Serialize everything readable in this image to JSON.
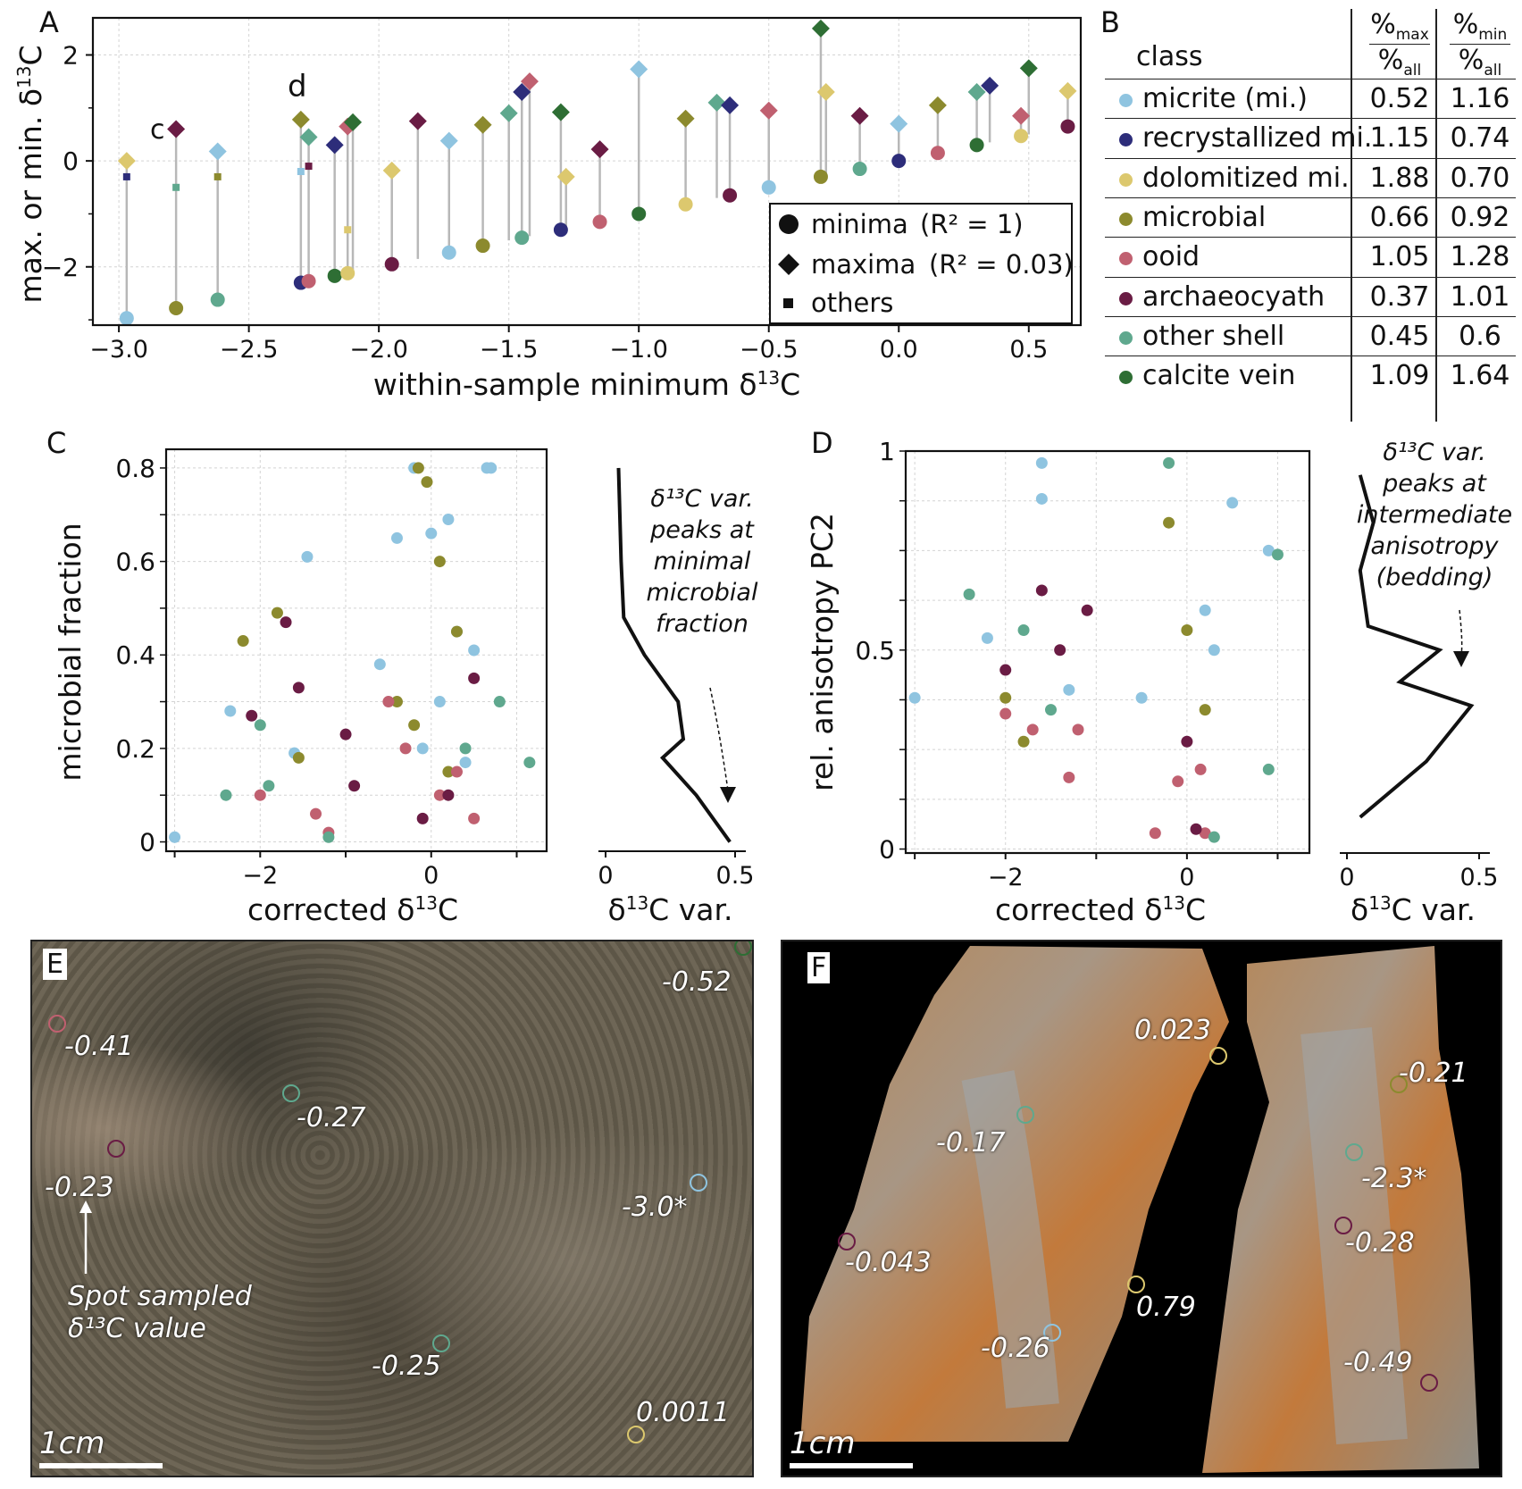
{
  "colors": {
    "micrite": "#8fc4e0",
    "recrystallized": "#2d2d7a",
    "dolomitized": "#dcc86e",
    "microbial": "#8c8a2e",
    "ooid": "#c06070",
    "archaeocyath": "#6a1c44",
    "other_shell": "#5fa88e",
    "calcite_vein": "#2e6e34"
  },
  "panelA": {
    "letter": "A",
    "ylabel_main": "max. or min. δ",
    "ylabel_sup": "13",
    "ylabel_end": "C",
    "xlabel_main": "within-sample minimum δ",
    "xlabel_sup": "13",
    "xlabel_end": "C",
    "xticks": [
      "−3.0",
      "−2.5",
      "−2.0",
      "−1.5",
      "−1.0",
      "−0.5",
      "0.0",
      "0.5"
    ],
    "yticks": [
      "2",
      "0",
      "−2"
    ],
    "annot_c": "c",
    "annot_d": "d",
    "legend": {
      "minima": "minima",
      "minima_r2": "(R² = 1)",
      "maxima": "maxima",
      "maxima_r2": "(R² = 0.03)",
      "others": "others"
    }
  },
  "panelB": {
    "letter": "B",
    "header_class": "class",
    "header_max_top": "%",
    "header_max_sub": "max",
    "header_max_bottom": "%",
    "header_max_bottom_sub": "all",
    "header_min_top": "%",
    "header_min_sub": "min",
    "header_min_bottom": "%",
    "header_min_bottom_sub": "all",
    "rows": [
      {
        "class": "micrite (mi.)",
        "max": "0.52",
        "min": "1.16",
        "color": "#8fc4e0"
      },
      {
        "class": "recrystallized mi.",
        "max": "1.15",
        "min": "0.74",
        "color": "#2d2d7a"
      },
      {
        "class": "dolomitized mi.",
        "max": "1.88",
        "min": "0.70",
        "color": "#dcc86e"
      },
      {
        "class": "microbial",
        "max": "0.66",
        "min": "0.92",
        "color": "#8c8a2e"
      },
      {
        "class": "ooid",
        "max": "1.05",
        "min": "1.28",
        "color": "#c06070"
      },
      {
        "class": "archaeocyath",
        "max": "0.37",
        "min": "1.01",
        "color": "#6a1c44"
      },
      {
        "class": "other shell",
        "max": "0.45",
        "min": "0.6",
        "color": "#5fa88e"
      },
      {
        "class": "calcite vein",
        "max": "1.09",
        "min": "1.64",
        "color": "#2e6e34"
      }
    ]
  },
  "panelC": {
    "letter": "C",
    "ylabel": "microbial fraction",
    "xlabel_main": "corrected δ",
    "xlabel_sup": "13",
    "xlabel_end": "C",
    "xticks": [
      "−2",
      "0"
    ],
    "yticks": [
      "0",
      "0.2",
      "0.4",
      "0.6",
      "0.8"
    ],
    "var_xticks": [
      "0",
      "0.5"
    ],
    "var_xlabel_main": "δ",
    "var_xlabel_sup": "13",
    "var_xlabel_end": "C var.",
    "note": [
      "δ¹³C var.",
      "peaks at",
      "minimal",
      "microbial",
      "fraction"
    ]
  },
  "panelD": {
    "letter": "D",
    "ylabel": "rel. anisotropy PC2",
    "xlabel_main": "corrected δ",
    "xlabel_sup": "13",
    "xlabel_end": "C",
    "xticks": [
      "−2",
      "0"
    ],
    "yticks": [
      "0",
      "0.5",
      "1"
    ],
    "var_xticks": [
      "0",
      "0.5"
    ],
    "var_xlabel_main": "δ",
    "var_xlabel_sup": "13",
    "var_xlabel_end": "C var.",
    "note": [
      "δ¹³C var.",
      "peaks at",
      "intermediate",
      "anisotropy",
      "(bedding)"
    ]
  },
  "panelE": {
    "letter": "E",
    "scale": "1cm",
    "values": [
      "-0.52",
      "-0.41",
      "-0.27",
      "-0.23",
      "-3.0*",
      "-0.25",
      "0.0011"
    ],
    "caption_line1": "Spot sampled",
    "caption_line2": "δ¹³C value"
  },
  "panelF": {
    "letter": "F",
    "scale": "1cm",
    "values": [
      "0.023",
      "-0.21",
      "-0.17",
      "-2.3*",
      "-0.28",
      "-0.043",
      "0.79",
      "-0.26",
      "-0.49"
    ]
  },
  "chart_data": [
    {
      "panel": "A",
      "type": "scatter",
      "xlabel": "within-sample minimum δ13C",
      "ylabel": "max. or min. δ13C",
      "xlim": [
        -3.1,
        0.7
      ],
      "ylim": [
        -3.1,
        2.7
      ],
      "grid": true,
      "legend_placement": "lower-right",
      "series": [
        {
          "name": "minima (R² = 1)",
          "marker": "circle",
          "x": [
            -2.97,
            -2.78,
            -2.62,
            -2.3,
            -2.27,
            -2.17,
            -2.12,
            -1.95,
            -1.73,
            -1.6,
            -1.45,
            -1.3,
            -1.15,
            -1.0,
            -0.82,
            -0.65,
            -0.5,
            -0.3,
            -0.15,
            0.0,
            0.15,
            0.3,
            0.47,
            0.65
          ],
          "y": [
            -2.97,
            -2.78,
            -2.62,
            -2.3,
            -2.27,
            -2.17,
            -2.12,
            -1.95,
            -1.73,
            -1.6,
            -1.45,
            -1.3,
            -1.15,
            -1.0,
            -0.82,
            -0.65,
            -0.5,
            -0.3,
            -0.15,
            0.0,
            0.15,
            0.3,
            0.47,
            0.65
          ]
        },
        {
          "name": "maxima (R² = 0.03)",
          "marker": "diamond",
          "x": [
            -2.97,
            -2.78,
            -2.62,
            -2.3,
            -2.27,
            -2.17,
            -2.12,
            -2.1,
            -1.95,
            -1.85,
            -1.73,
            -1.6,
            -1.5,
            -1.45,
            -1.42,
            -1.3,
            -1.28,
            -1.15,
            -1.0,
            -0.82,
            -0.7,
            -0.65,
            -0.5,
            -0.3,
            -0.28,
            -0.15,
            0.0,
            0.15,
            0.3,
            0.35,
            0.47,
            0.5,
            0.65
          ],
          "y": [
            0.0,
            0.6,
            0.18,
            0.78,
            0.45,
            0.3,
            0.65,
            0.73,
            -0.18,
            0.75,
            0.38,
            0.68,
            0.9,
            1.3,
            1.5,
            0.92,
            -0.3,
            0.22,
            1.73,
            0.8,
            1.1,
            1.05,
            0.95,
            2.5,
            1.3,
            0.85,
            0.7,
            1.05,
            1.3,
            1.42,
            0.85,
            1.75,
            1.32
          ]
        },
        {
          "name": "others",
          "marker": "square",
          "x": [
            -2.97,
            -2.78,
            -2.62,
            -2.3,
            -2.27,
            -2.12
          ],
          "y": [
            -0.3,
            -0.5,
            -0.3,
            -0.2,
            -0.1,
            -1.3
          ]
        }
      ]
    },
    {
      "panel": "C",
      "type": "scatter",
      "xlabel": "corrected δ13C",
      "ylabel": "microbial fraction",
      "xlim": [
        -3.1,
        1.35
      ],
      "ylim": [
        -0.02,
        0.84
      ],
      "grid": true,
      "series": [
        {
          "name": "micrite (mi.)",
          "x": [
            -3.0,
            -2.35,
            -1.6,
            -1.45,
            -0.6,
            -0.4,
            -0.2,
            0.0,
            0.2,
            0.5,
            0.65,
            0.7,
            0.3,
            0.1,
            -0.1,
            0.4
          ],
          "y": [
            0.01,
            0.28,
            0.19,
            0.61,
            0.38,
            0.65,
            0.8,
            0.66,
            0.69,
            0.41,
            0.8,
            0.8,
            0.45,
            0.3,
            0.2,
            0.17
          ]
        },
        {
          "name": "microbial",
          "x": [
            -2.2,
            -1.8,
            -1.55,
            -0.15,
            -0.05,
            0.1,
            0.3,
            -0.4,
            -0.2,
            0.2
          ],
          "y": [
            0.43,
            0.49,
            0.18,
            0.8,
            0.77,
            0.6,
            0.45,
            0.3,
            0.25,
            0.15
          ]
        },
        {
          "name": "ooid",
          "x": [
            -2.0,
            -1.35,
            -1.2,
            -0.3,
            0.1,
            0.3,
            0.5,
            -0.5
          ],
          "y": [
            0.1,
            0.06,
            0.02,
            0.2,
            0.1,
            0.15,
            0.05,
            0.3
          ]
        },
        {
          "name": "archaeocyath",
          "x": [
            -1.7,
            -1.55,
            -2.1,
            -1.0,
            -0.9,
            0.2,
            0.5,
            -0.1
          ],
          "y": [
            0.47,
            0.33,
            0.27,
            0.23,
            0.12,
            0.1,
            0.35,
            0.05
          ]
        },
        {
          "name": "other shell",
          "x": [
            -2.4,
            -2.0,
            -1.9,
            -1.2,
            0.4,
            0.8,
            1.15
          ],
          "y": [
            0.1,
            0.25,
            0.12,
            0.01,
            0.2,
            0.3,
            0.17
          ]
        },
        {
          "name": "δ13C var. profile",
          "x": [
            0.05,
            0.06,
            0.07,
            0.15,
            0.28,
            0.3,
            0.22,
            0.35,
            0.48
          ],
          "y": [
            0.8,
            0.6,
            0.48,
            0.4,
            0.3,
            0.22,
            0.18,
            0.1,
            0.0
          ]
        }
      ]
    },
    {
      "panel": "D",
      "type": "scatter",
      "xlabel": "corrected δ13C",
      "ylabel": "rel. anisotropy PC2",
      "xlim": [
        -3.1,
        1.35
      ],
      "ylim": [
        -0.01,
        1.0
      ],
      "grid": true,
      "series": [
        {
          "name": "micrite (mi.)",
          "x": [
            -3.0,
            -1.6,
            -1.6,
            -2.2,
            -1.3,
            0.9,
            -0.5,
            0.3,
            0.5,
            0.2
          ],
          "y": [
            0.38,
            0.97,
            0.88,
            0.53,
            0.4,
            0.75,
            0.38,
            0.5,
            0.87,
            0.6
          ]
        },
        {
          "name": "microbial",
          "x": [
            -2.0,
            -1.8,
            -0.2,
            0.0,
            0.2
          ],
          "y": [
            0.38,
            0.27,
            0.82,
            0.55,
            0.35
          ]
        },
        {
          "name": "ooid",
          "x": [
            -2.0,
            -1.7,
            -1.3,
            -1.2,
            -0.35,
            -0.1,
            0.15,
            0.2
          ],
          "y": [
            0.34,
            0.3,
            0.18,
            0.3,
            0.04,
            0.17,
            0.2,
            0.04
          ]
        },
        {
          "name": "archaeocyath",
          "x": [
            -1.6,
            -1.4,
            -1.1,
            -2.0,
            0.0,
            0.1
          ],
          "y": [
            0.65,
            0.5,
            0.6,
            0.45,
            0.27,
            0.05
          ]
        },
        {
          "name": "other shell",
          "x": [
            -2.4,
            -1.8,
            -1.5,
            -0.2,
            0.3,
            1.0,
            0.9
          ],
          "y": [
            0.64,
            0.55,
            0.35,
            0.97,
            0.03,
            0.74,
            0.2
          ]
        },
        {
          "name": "δ13C var. profile",
          "x": [
            0.05,
            0.1,
            0.05,
            0.08,
            0.35,
            0.2,
            0.47,
            0.3,
            0.05
          ],
          "y": [
            0.94,
            0.82,
            0.7,
            0.56,
            0.5,
            0.42,
            0.36,
            0.22,
            0.08
          ]
        }
      ]
    }
  ]
}
